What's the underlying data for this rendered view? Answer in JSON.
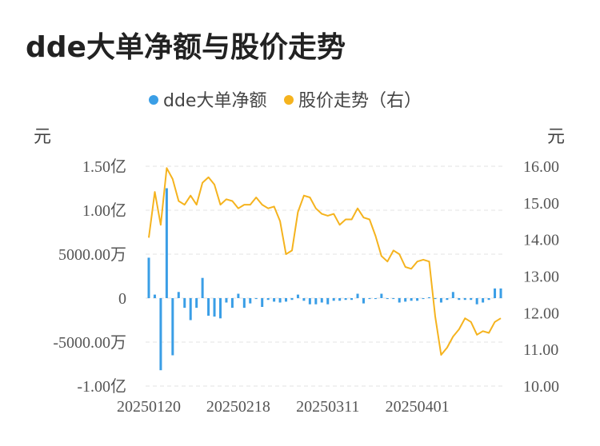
{
  "page": {
    "title": "dde大单净额与股价走势"
  },
  "legend": {
    "items": [
      {
        "label": "dde大单净额",
        "color": "#3a9ee6"
      },
      {
        "label": "股价走势（右）",
        "color": "#f5b31e"
      }
    ]
  },
  "chart_data": {
    "type": "bar+line",
    "title": "dde大单净额与股价走势",
    "legend_position": "top-center",
    "grid": true,
    "left_axis": {
      "unit_label": "元",
      "range": [
        -10000,
        15000
      ],
      "ticks": [
        {
          "value": 15000,
          "label": "1.50亿"
        },
        {
          "value": 10000,
          "label": "1.00亿"
        },
        {
          "value": 5000,
          "label": "5000.00万"
        },
        {
          "value": 0,
          "label": "0"
        },
        {
          "value": -5000,
          "label": "-5000.00万"
        },
        {
          "value": -10000,
          "label": "-1.00亿"
        }
      ],
      "value_units": "万元"
    },
    "right_axis": {
      "unit_label": "元",
      "range": [
        10,
        16
      ],
      "ticks": [
        {
          "value": 16,
          "label": "16.00"
        },
        {
          "value": 15,
          "label": "15.00"
        },
        {
          "value": 14,
          "label": "14.00"
        },
        {
          "value": 13,
          "label": "13.00"
        },
        {
          "value": 12,
          "label": "12.00"
        },
        {
          "value": 11,
          "label": "11.00"
        },
        {
          "value": 10,
          "label": "10.00"
        }
      ]
    },
    "x_tick_labels": [
      {
        "index": 0,
        "label": "20250120"
      },
      {
        "index": 15,
        "label": "20250218"
      },
      {
        "index": 30,
        "label": "20250311"
      },
      {
        "index": 45,
        "label": "20250401"
      }
    ],
    "series": [
      {
        "name": "dde大单净额",
        "kind": "bar",
        "axis": "left",
        "values": [
          4600,
          400,
          -8200,
          12500,
          -6500,
          700,
          -1100,
          -2500,
          -1100,
          2300,
          -2000,
          -2100,
          -2300,
          -500,
          -1100,
          500,
          -1100,
          -600,
          -100,
          -1000,
          -200,
          -400,
          -500,
          -400,
          -200,
          400,
          -300,
          -700,
          -700,
          -500,
          -700,
          -300,
          -300,
          -200,
          -200,
          500,
          -600,
          -100,
          -100,
          500,
          -100,
          -100,
          -500,
          -400,
          -300,
          -300,
          -100,
          100,
          -100,
          -500,
          -200,
          700,
          -200,
          -200,
          -200,
          -700,
          -500,
          -200,
          1100,
          1100
        ]
      },
      {
        "name": "股价走势（右）",
        "kind": "line",
        "axis": "right",
        "values": [
          14.05,
          15.3,
          14.4,
          15.95,
          15.65,
          15.05,
          14.95,
          15.2,
          14.95,
          15.55,
          15.7,
          15.5,
          14.95,
          15.1,
          15.05,
          14.85,
          14.95,
          14.95,
          15.15,
          14.95,
          14.85,
          14.9,
          14.5,
          13.6,
          13.7,
          14.75,
          15.2,
          15.15,
          14.85,
          14.7,
          14.65,
          14.7,
          14.4,
          14.55,
          14.55,
          14.85,
          14.6,
          14.55,
          14.1,
          13.55,
          13.4,
          13.7,
          13.6,
          13.25,
          13.2,
          13.4,
          13.45,
          13.4,
          11.9,
          10.85,
          11.05,
          11.35,
          11.55,
          11.85,
          11.75,
          11.4,
          11.5,
          11.45,
          11.75,
          11.85
        ]
      }
    ]
  }
}
